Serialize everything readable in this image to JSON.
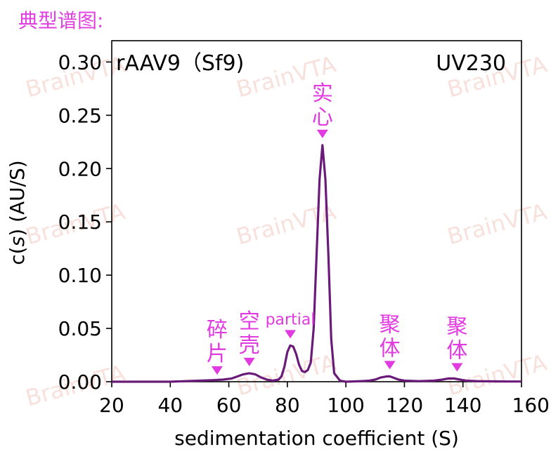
{
  "page": {
    "heading": "典型谱图:"
  },
  "colors": {
    "accent": "#e03ae0",
    "line": "#6a1b7a",
    "watermark": "#f2c9c0"
  },
  "watermark": {
    "text": "BrainVTA"
  },
  "chart_data": {
    "type": "line",
    "title_left": "rAAV9（Sf9)",
    "title_right": "UV230",
    "xlabel": "sedimentation coefficient (S)",
    "ylabel_prefix": "c(",
    "ylabel_italic": "s",
    "ylabel_suffix": ") (AU/S)",
    "xlim": [
      20,
      160
    ],
    "ylim": [
      0,
      0.32
    ],
    "xticks": [
      20,
      40,
      60,
      80,
      100,
      120,
      140,
      160
    ],
    "xtick_labels": [
      "20",
      "40",
      "60",
      "80",
      "100",
      "120",
      "140",
      "160"
    ],
    "yticks": [
      0.0,
      0.05,
      0.1,
      0.15,
      0.2,
      0.25,
      0.3
    ],
    "ytick_labels": [
      "0.00",
      "0.05",
      "0.10",
      "0.15",
      "0.20",
      "0.25",
      "0.30"
    ],
    "grid": false,
    "series": [
      {
        "x": [
          20,
          30,
          40,
          45,
          50,
          55,
          58,
          61,
          63,
          65,
          67,
          69,
          71,
          73,
          75,
          77,
          78,
          79,
          80,
          81,
          82,
          83,
          84,
          85,
          86,
          87,
          88,
          89,
          90,
          91,
          92,
          93,
          94,
          95,
          96,
          98,
          100,
          105,
          108,
          110,
          112,
          114,
          115,
          116,
          118,
          120,
          125,
          130,
          133,
          135,
          137,
          139,
          141,
          145,
          150,
          155,
          160
        ],
        "y": [
          0.0,
          0.0,
          0.0,
          0.0005,
          0.001,
          0.0015,
          0.002,
          0.003,
          0.005,
          0.007,
          0.008,
          0.007,
          0.004,
          0.002,
          0.001,
          0.002,
          0.005,
          0.014,
          0.028,
          0.034,
          0.033,
          0.026,
          0.016,
          0.01,
          0.009,
          0.011,
          0.018,
          0.05,
          0.12,
          0.19,
          0.222,
          0.19,
          0.12,
          0.04,
          0.008,
          0.001,
          0.0,
          0.0005,
          0.001,
          0.002,
          0.004,
          0.005,
          0.005,
          0.004,
          0.002,
          0.001,
          0.0005,
          0.001,
          0.002,
          0.003,
          0.003,
          0.002,
          0.001,
          0.0005,
          0.0003,
          0.0002,
          0.0002
        ]
      }
    ],
    "annotations": [
      {
        "text": "碎\n片",
        "x": 56,
        "y": 0.0
      },
      {
        "text": "空\n壳",
        "x": 67,
        "y": 0.008
      },
      {
        "text": "partial",
        "x": 81,
        "y": 0.034
      },
      {
        "text": "实\n心",
        "x": 92,
        "y": 0.222
      },
      {
        "text": "聚\n体",
        "x": 115,
        "y": 0.005
      },
      {
        "text": "聚\n体",
        "x": 138,
        "y": 0.003
      }
    ]
  }
}
